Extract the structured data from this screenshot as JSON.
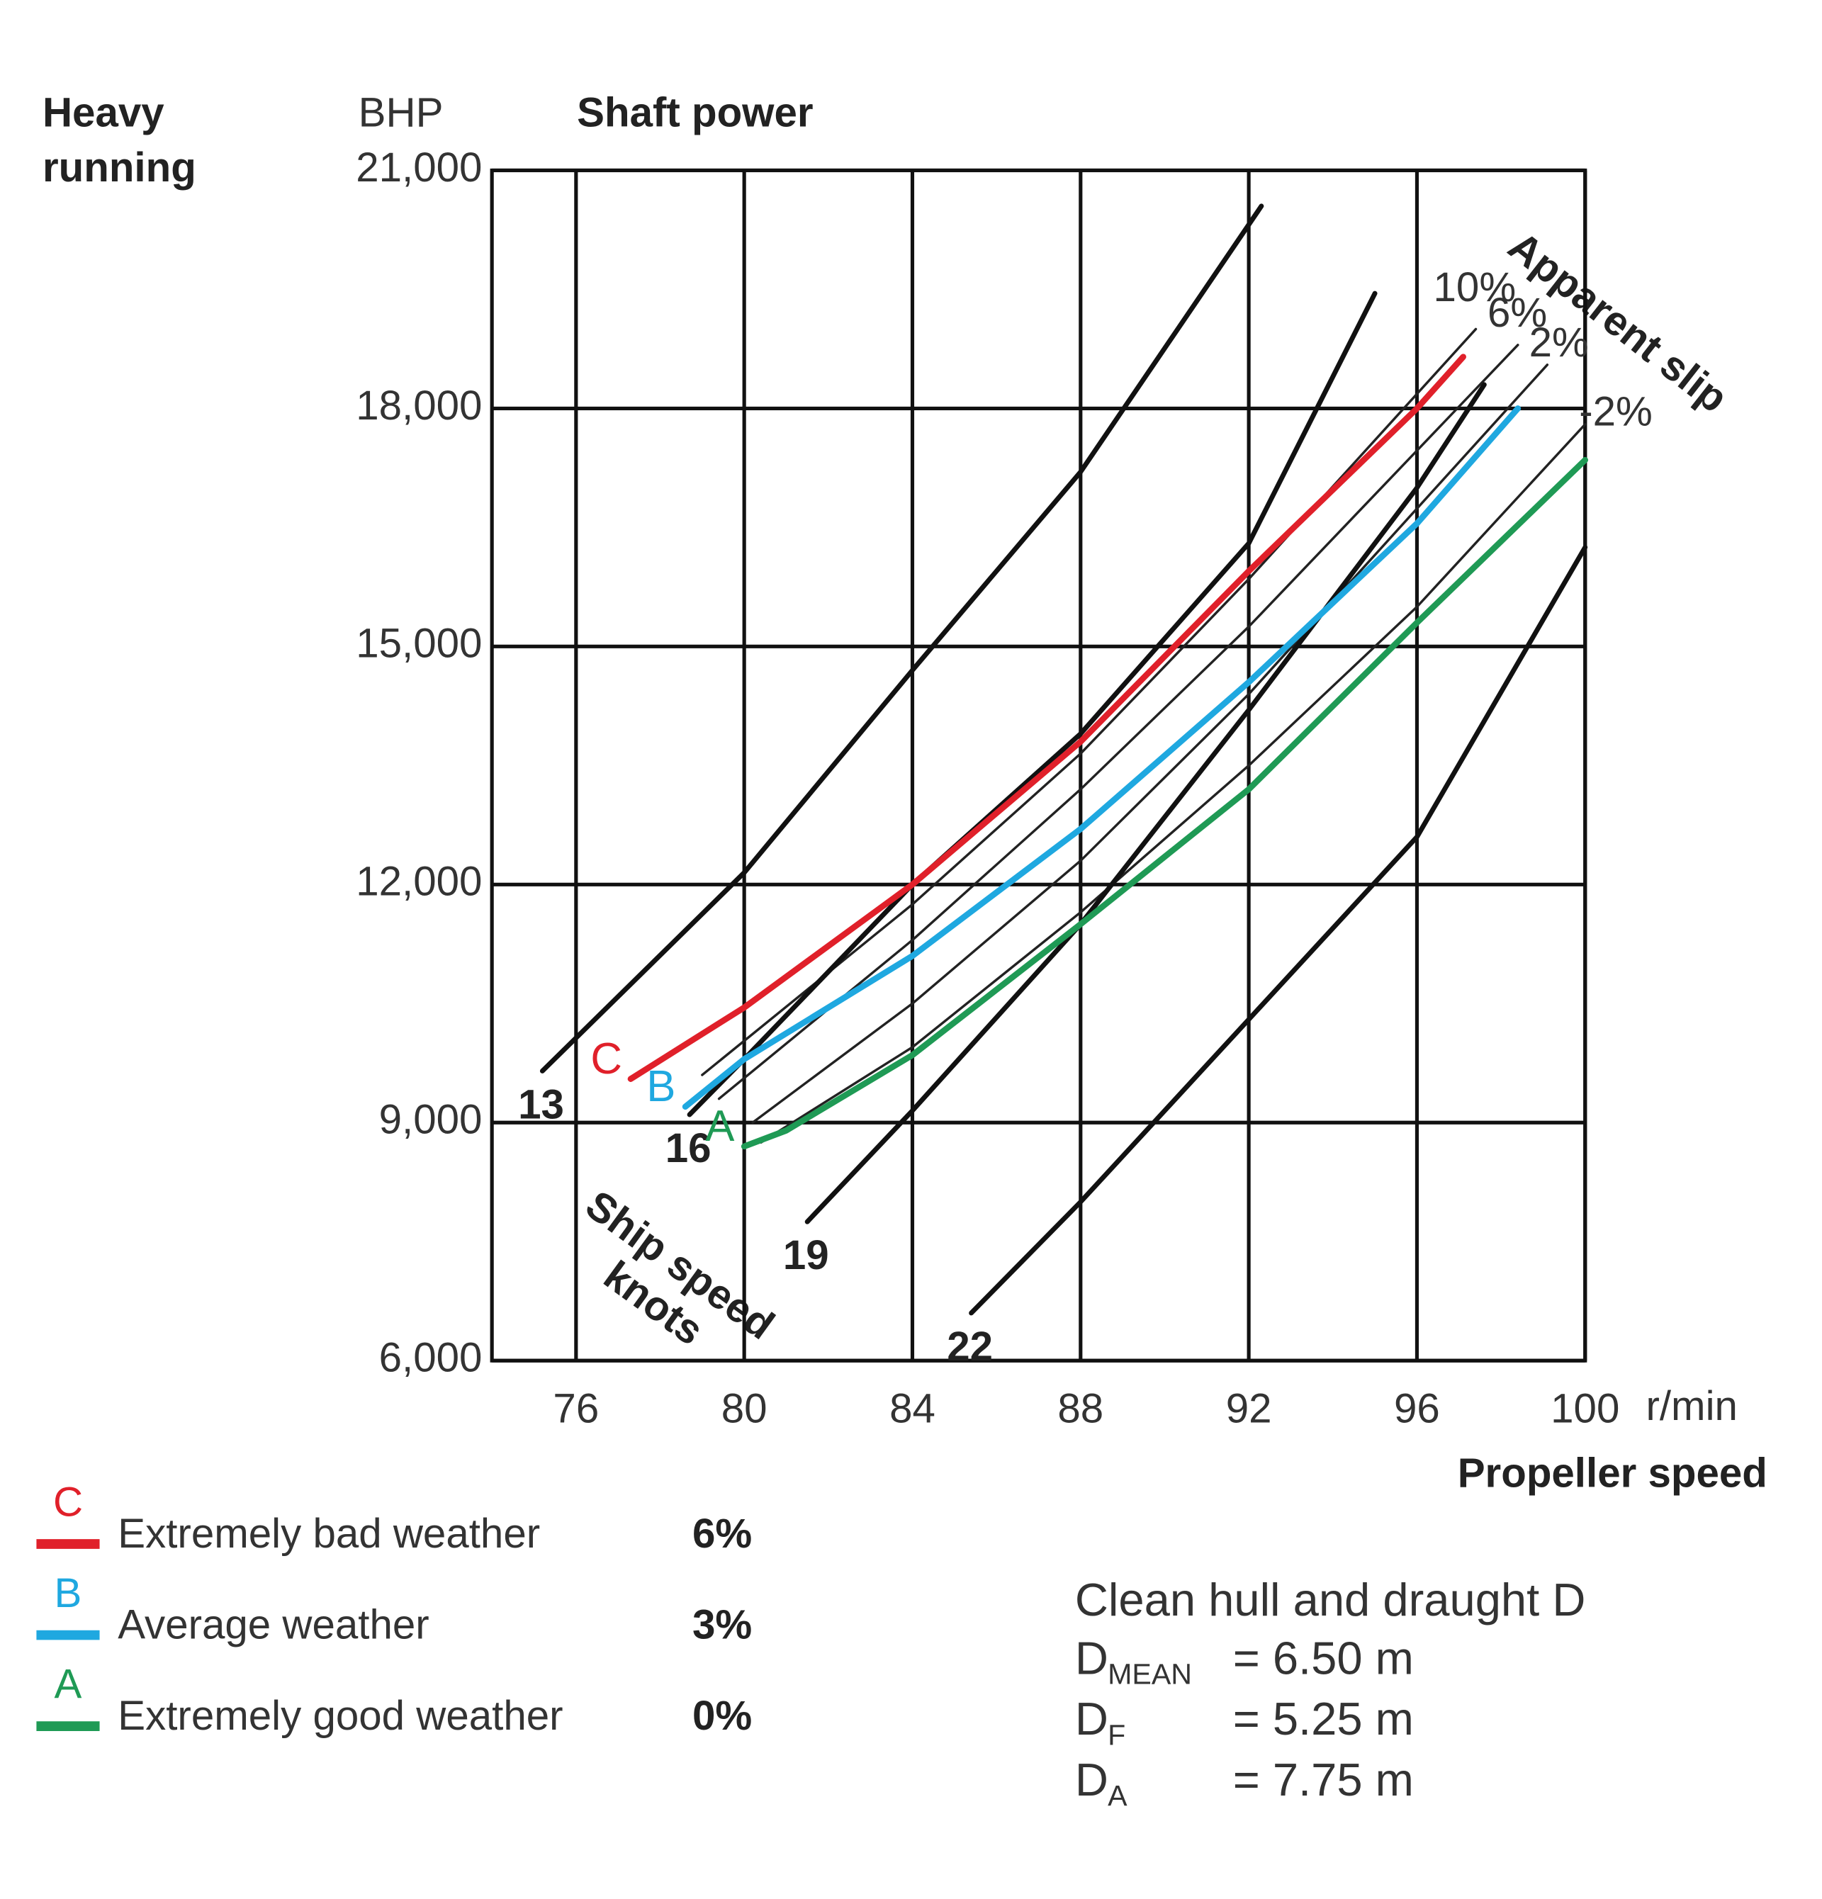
{
  "chart_data": {
    "type": "line",
    "y_note": [
      "Heavy",
      "running"
    ],
    "y_unit": "BHP",
    "ylabel": "Shaft power",
    "xlabel": "Propeller speed",
    "x_unit": "r/min",
    "xlim": [
      74,
      100
    ],
    "ylim": [
      6000,
      21000
    ],
    "xticks": [
      76,
      80,
      84,
      88,
      92,
      96,
      100
    ],
    "yticks": [
      {
        "value": 6000,
        "label": "6,000"
      },
      {
        "value": 9000,
        "label": "9,000"
      },
      {
        "value": 12000,
        "label": "12,000"
      },
      {
        "value": 15000,
        "label": "15,000"
      },
      {
        "value": 18000,
        "label": "18,000"
      },
      {
        "value": 21000,
        "label": "21,000"
      }
    ],
    "grid": true,
    "series": [
      {
        "label": "C",
        "name": "Extremely bad weather",
        "margin": "6%",
        "color": "#e0202a",
        "x": [
          77.3,
          80,
          84,
          88,
          92,
          96,
          97.1
        ],
        "values": [
          9550,
          10450,
          12000,
          13800,
          15950,
          18000,
          18650
        ]
      },
      {
        "label": "B",
        "name": "Average weather",
        "margin": "3%",
        "color": "#1fa8e0",
        "x": [
          78.6,
          80,
          84,
          88,
          92,
          96,
          98.4
        ],
        "values": [
          9200,
          9800,
          11100,
          12700,
          14550,
          16550,
          18000
        ]
      },
      {
        "label": "A",
        "name": "Extremely good weather",
        "margin": "0%",
        "color": "#1f9a55",
        "x": [
          80,
          81,
          84,
          88,
          92,
          96,
          100
        ],
        "values": [
          8700,
          8900,
          9850,
          11500,
          13200,
          15300,
          17350
        ]
      }
    ],
    "speed_label": [
      "Ship speed",
      "knots"
    ],
    "speed_lines": [
      {
        "name": "13",
        "color": "#111111",
        "x": [
          75.2,
          80,
          84,
          88,
          92.3
        ],
        "values": [
          9650,
          12150,
          14700,
          17200,
          20550
        ]
      },
      {
        "name": "16",
        "color": "#111111",
        "x": [
          78.7,
          80,
          84,
          88,
          92,
          95
        ],
        "values": [
          9100,
          9800,
          12000,
          13900,
          16300,
          19450
        ]
      },
      {
        "name": "19",
        "color": "#111111",
        "x": [
          81.5,
          84,
          88,
          92,
          96,
          97.6
        ],
        "values": [
          7750,
          9150,
          11500,
          14200,
          17000,
          18300
        ]
      },
      {
        "name": "22",
        "color": "#111111",
        "x": [
          85.4,
          88,
          92,
          96,
          100
        ],
        "values": [
          6600,
          8000,
          10300,
          12600,
          16250
        ]
      }
    ],
    "slip_label": "Apparent slip",
    "slip_lines": [
      {
        "name": "10%",
        "color": "#222222",
        "x": [
          79,
          84,
          88,
          92,
          97.4
        ],
        "values": [
          9600,
          11750,
          13650,
          15850,
          19000
        ]
      },
      {
        "name": "6%",
        "color": "#222222",
        "x": [
          79.4,
          84,
          88,
          92,
          98.4
        ],
        "values": [
          9300,
          11300,
          13200,
          15250,
          18800
        ]
      },
      {
        "name": "2%",
        "color": "#222222",
        "x": [
          80.2,
          84,
          88,
          92,
          99.1
        ],
        "values": [
          9000,
          10500,
          12300,
          14400,
          18550
        ]
      },
      {
        "name": "-2%",
        "color": "#222222",
        "x": [
          80.4,
          84,
          88,
          92,
          96,
          100
        ],
        "values": [
          8750,
          9950,
          11650,
          13500,
          15500,
          17800
        ]
      }
    ],
    "note": {
      "title": "Clean hull and draught D",
      "rows": [
        {
          "symbol": "D",
          "subscript": "MEAN",
          "value": "= 6.50 m"
        },
        {
          "symbol": "D",
          "subscript": "F",
          "value": "= 5.25 m"
        },
        {
          "symbol": "D",
          "subscript": "A",
          "value": "= 7.75 m"
        }
      ]
    }
  }
}
